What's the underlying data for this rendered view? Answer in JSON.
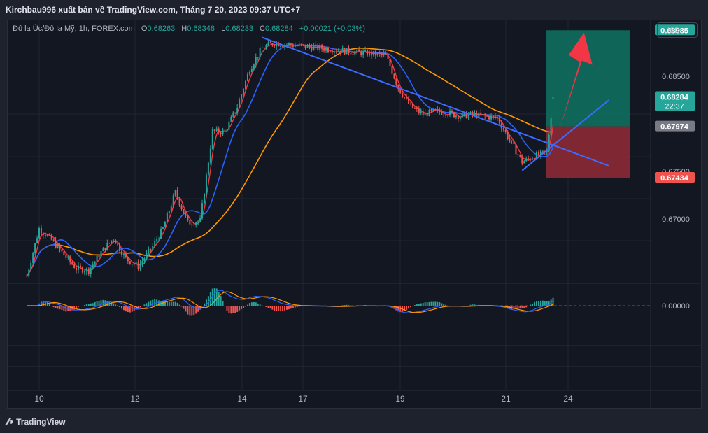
{
  "header": {
    "publisher_line": "Kirchbau996 xuất bản về TradingView.com, Tháng 7 20, 2023 09:37 UTC+7"
  },
  "legend": {
    "symbol": "Đô la Úc/Đô la Mỹ, 1h, FOREX.com",
    "open_label": "O",
    "open": "0.68263",
    "high_label": "H",
    "high": "0.68348",
    "low_label": "L",
    "low": "0.68233",
    "close_label": "C",
    "close": "0.68284",
    "change": "+0.00021 (+0.03%)"
  },
  "currency_button": "USD",
  "footer": {
    "brand": "TradingView"
  },
  "colors": {
    "up": "#26a69a",
    "down": "#ef5350",
    "ma_fast_red": "#f23645",
    "ma_mid_blue": "#2962ff",
    "ma_slow_orange": "#ff9800",
    "trendline": "#3d6bff",
    "arrow": "#f23645",
    "target_zone": "#0f6e5e",
    "stop_zone": "#8c2a35",
    "hist_pos": "#26a69a",
    "hist_neg": "#ef5350",
    "macd_line": "#2962ff",
    "signal_line": "#ff9800"
  },
  "chart_data": {
    "type": "candlestick",
    "symbol": "AUDUSD",
    "timeframe": "1h",
    "ylim": [
      0.6633,
      0.6909
    ],
    "y_ticks": [
      "0.68500",
      "0.67500",
      "0.67000"
    ],
    "x_ticks": [
      "10",
      "12",
      "14",
      "17",
      "19",
      "21",
      "24"
    ],
    "price_labels": {
      "target": "0.68985",
      "current": "0.68284",
      "countdown": "22:37",
      "entry": "0.67974",
      "stop": "0.67434"
    },
    "oscillator_zero_label": "0.00000",
    "close_path": [
      [
        "07-09 18:00",
        0.664
      ],
      [
        "07-10 00:00",
        0.669
      ],
      [
        "07-10 06:00",
        0.6678
      ],
      [
        "07-10 12:00",
        0.6662
      ],
      [
        "07-10 18:00",
        0.6648
      ],
      [
        "07-11 00:00",
        0.6646
      ],
      [
        "07-11 06:00",
        0.6665
      ],
      [
        "07-11 12:00",
        0.668
      ],
      [
        "07-11 18:00",
        0.6658
      ],
      [
        "07-12 00:00",
        0.665
      ],
      [
        "07-12 06:00",
        0.6668
      ],
      [
        "07-12 12:00",
        0.669
      ],
      [
        "07-12 18:00",
        0.6728
      ],
      [
        "07-13 00:00",
        0.6696
      ],
      [
        "07-13 06:00",
        0.6698
      ],
      [
        "07-13 12:00",
        0.6792
      ],
      [
        "07-13 18:00",
        0.6792
      ],
      [
        "07-14 00:00",
        0.6818
      ],
      [
        "07-14 06:00",
        0.6858
      ],
      [
        "07-14 12:00",
        0.688
      ],
      [
        "07-14 18:00",
        0.6885
      ],
      [
        "07-17 00:00",
        0.6872
      ],
      [
        "07-17 06:00",
        0.6838
      ],
      [
        "07-17 12:00",
        0.6818
      ],
      [
        "07-17 18:00",
        0.681
      ],
      [
        "07-18 00:00",
        0.6813
      ],
      [
        "07-18 06:00",
        0.6812
      ],
      [
        "07-18 12:00",
        0.6808
      ],
      [
        "07-18 18:00",
        0.681
      ],
      [
        "07-19 00:00",
        0.6808
      ],
      [
        "07-19 06:00",
        0.6806
      ],
      [
        "07-19 12:00",
        0.6783
      ],
      [
        "07-19 18:00",
        0.676
      ],
      [
        "07-20 00:00",
        0.6766
      ],
      [
        "07-20 06:00",
        0.677
      ],
      [
        "07-20 09:00",
        0.6828
      ]
    ],
    "overlays": {
      "descending_trendline": [
        [
          "07-14 12:00",
          0.6891
        ],
        [
          "07-21 12:00",
          0.6756
        ]
      ],
      "ascending_trendline": [
        [
          "07-19 18:00",
          0.6751
        ],
        [
          "07-21 12:00",
          0.6825
        ]
      ],
      "arrow": [
        [
          "07-20 12:00",
          0.6793
        ],
        [
          "07-21 00:00",
          0.6896
        ]
      ],
      "target_zone": [
        0.67974,
        0.68985
      ],
      "stop_zone": [
        0.67434,
        0.67974
      ]
    }
  }
}
